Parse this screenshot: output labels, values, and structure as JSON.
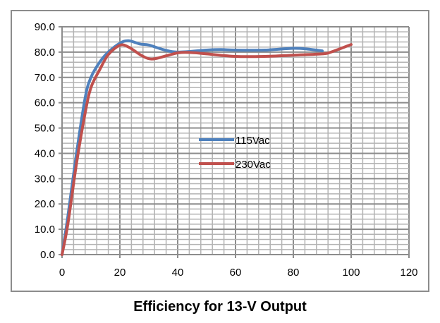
{
  "chart_data": {
    "type": "line",
    "title": "Efficiency for 13-V Output",
    "xlabel": "",
    "ylabel": "",
    "xlim": [
      0,
      120
    ],
    "ylim": [
      0,
      90
    ],
    "xticks": [
      "0",
      "20",
      "40",
      "60",
      "80",
      "100",
      "120"
    ],
    "yticks": [
      "0.0",
      "10.0",
      "20.0",
      "30.0",
      "40.0",
      "50.0",
      "60.0",
      "70.0",
      "80.0",
      "90.0"
    ],
    "grid": true,
    "legend_position": "center",
    "series": [
      {
        "name": "115Vac",
        "color": "#4f81bd",
        "x": [
          0,
          2,
          5,
          8,
          10,
          13,
          16,
          20,
          23,
          27,
          30,
          35,
          40,
          50,
          55,
          60,
          70,
          80,
          85,
          90
        ],
        "y": [
          0,
          15,
          40,
          62,
          70,
          76,
          80,
          83.5,
          84.5,
          83.2,
          82.8,
          81,
          80,
          80.8,
          81,
          80.8,
          80.8,
          81.5,
          81.2,
          80.5
        ]
      },
      {
        "name": "230Vac",
        "color": "#c0504d",
        "x": [
          0,
          2,
          5,
          8,
          10,
          13,
          16,
          20,
          23,
          27,
          30,
          33,
          40,
          45,
          50,
          60,
          70,
          80,
          90,
          93,
          100
        ],
        "y": [
          0,
          12,
          36,
          56,
          66,
          73,
          79,
          82.7,
          82,
          79,
          77.4,
          77.6,
          79.7,
          79.8,
          79.3,
          78.3,
          78.3,
          78.8,
          79.3,
          80,
          83
        ]
      }
    ]
  }
}
